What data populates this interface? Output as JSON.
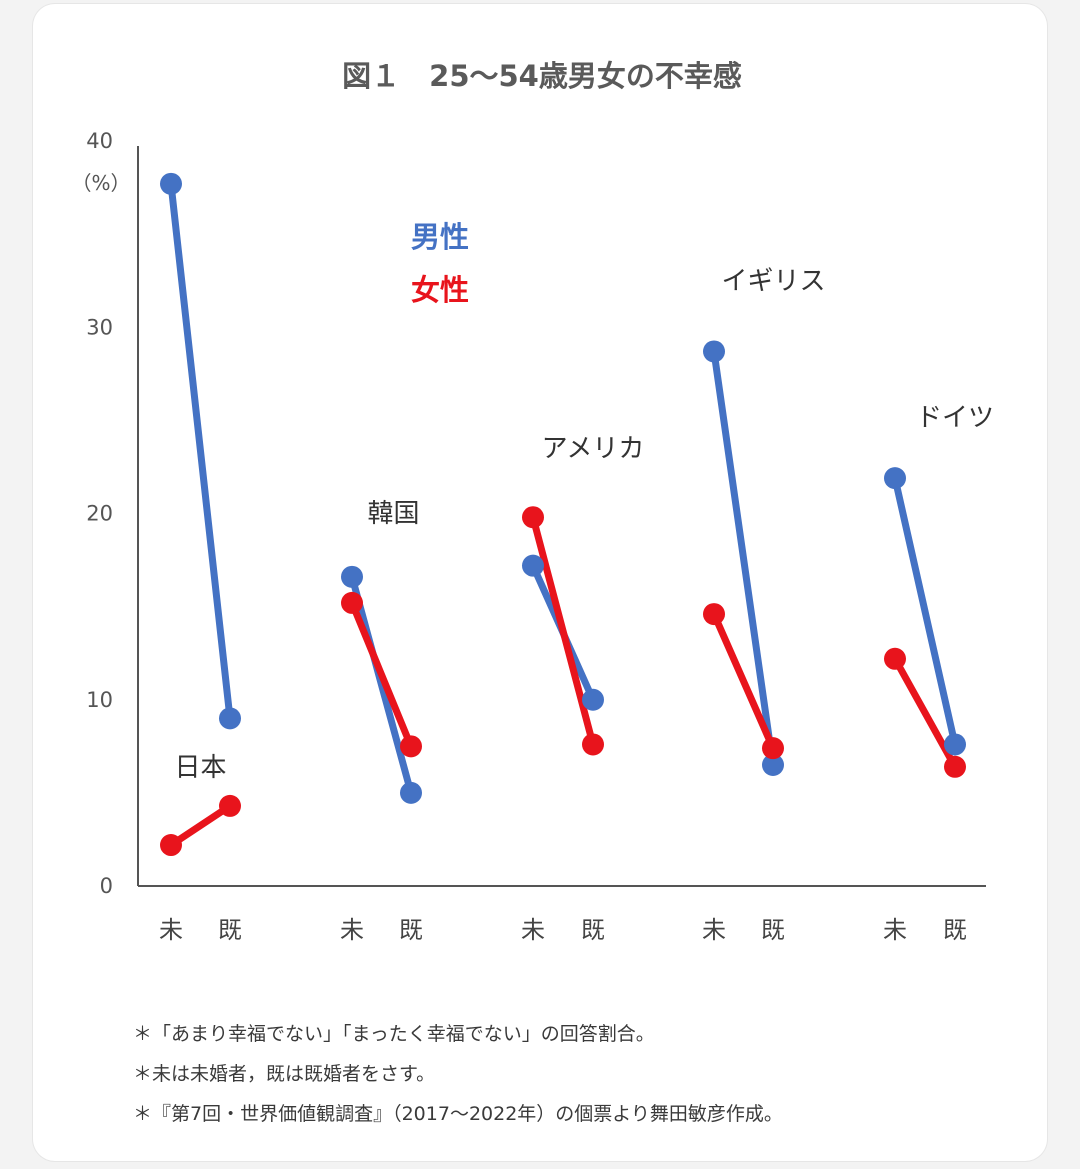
{
  "chart_data": {
    "type": "line",
    "title": "図１　25～54歳男女の不幸感",
    "ylabel": "（%）",
    "ylim": [
      0,
      40
    ],
    "yticks": [
      "0",
      "10",
      "20",
      "30",
      "40"
    ],
    "grid": false,
    "legend": {
      "placement": "top-left",
      "entries": [
        {
          "label": "男性",
          "color": "#4472c4"
        },
        {
          "label": "女性",
          "color": "#e8141c"
        }
      ]
    },
    "categories": [
      "未",
      "既"
    ],
    "groups": [
      {
        "label": "日本",
        "x_labels": [
          "未",
          "既"
        ],
        "male": [
          37.7,
          9.0
        ],
        "female": [
          2.2,
          4.3
        ]
      },
      {
        "label": "韓国",
        "x_labels": [
          "未",
          "既"
        ],
        "male": [
          16.6,
          5.0
        ],
        "female": [
          15.2,
          7.5
        ]
      },
      {
        "label": "アメリカ",
        "x_labels": [
          "未",
          "既"
        ],
        "male": [
          17.2,
          10.0
        ],
        "female": [
          19.8,
          7.6
        ]
      },
      {
        "label": "イギリス",
        "x_labels": [
          "未",
          "既"
        ],
        "male": [
          28.7,
          6.5
        ],
        "female": [
          14.6,
          7.4
        ]
      },
      {
        "label": "ドイツ",
        "x_labels": [
          "未",
          "既"
        ],
        "male": [
          21.9,
          7.6
        ],
        "female": [
          12.2,
          6.4
        ]
      }
    ],
    "series": [
      {
        "name": "男性",
        "color": "#4472c4"
      },
      {
        "name": "女性",
        "color": "#e8141c"
      }
    ]
  },
  "notes": [
    "＊「あまり幸福でない」「まったく幸福でない」の回答割合。",
    "＊未は未婚者，既は既婚者をさす。",
    "＊『第7回・世界価値観調査』（2017～2022年）の個票より舞田敏彦作成。"
  ]
}
